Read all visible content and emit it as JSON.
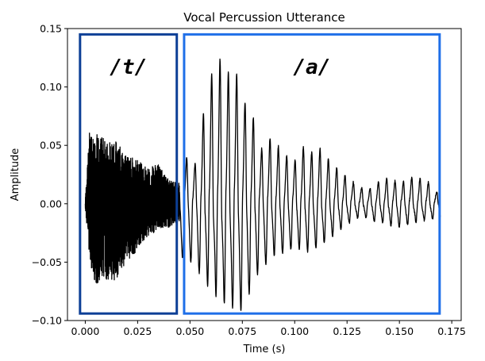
{
  "chart_data": {
    "type": "line",
    "title": "Vocal Percussion Utterance",
    "xlabel": "Time (s)",
    "ylabel": "Amplitude",
    "xlim": [
      -0.0085,
      0.1795
    ],
    "ylim": [
      -0.1,
      0.15
    ],
    "x_ticks": [
      0.0,
      0.025,
      0.05,
      0.075,
      0.1,
      0.125,
      0.15,
      0.175
    ],
    "x_tick_labels": [
      "0.000",
      "0.025",
      "0.050",
      "0.075",
      "0.100",
      "0.125",
      "0.150",
      "0.175"
    ],
    "y_ticks": [
      -0.1,
      -0.05,
      0.0,
      0.05,
      0.1,
      0.15
    ],
    "y_tick_labels": [
      "−0.10",
      "−0.05",
      "0.00",
      "0.05",
      "0.10",
      "0.15"
    ],
    "grid": false,
    "series": [
      {
        "color": "#000000",
        "x_start": 0.0,
        "x_end": 0.1695,
        "envelope": [
          {
            "x": 0.0,
            "low": -0.003,
            "high": 0.004
          },
          {
            "x": 0.002,
            "low": -0.048,
            "high": 0.062
          },
          {
            "x": 0.005,
            "low": -0.07,
            "high": 0.06
          },
          {
            "x": 0.01,
            "low": -0.066,
            "high": 0.055
          },
          {
            "x": 0.015,
            "low": -0.065,
            "high": 0.053
          },
          {
            "x": 0.02,
            "low": -0.05,
            "high": 0.042
          },
          {
            "x": 0.025,
            "low": -0.04,
            "high": 0.038
          },
          {
            "x": 0.03,
            "low": -0.028,
            "high": 0.03
          },
          {
            "x": 0.035,
            "low": -0.022,
            "high": 0.035
          },
          {
            "x": 0.04,
            "low": -0.02,
            "high": 0.02
          },
          {
            "x": 0.045,
            "low": -0.015,
            "high": 0.018
          }
        ],
        "peaks": [
          {
            "x": 0.0483,
            "low": -0.045,
            "high": 0.038
          },
          {
            "x": 0.0523,
            "low": -0.052,
            "high": 0.032
          },
          {
            "x": 0.0562,
            "low": -0.062,
            "high": 0.073
          },
          {
            "x": 0.0601,
            "low": -0.068,
            "high": 0.106
          },
          {
            "x": 0.0641,
            "low": -0.076,
            "high": 0.12
          },
          {
            "x": 0.0681,
            "low": -0.082,
            "high": 0.109
          },
          {
            "x": 0.0721,
            "low": -0.085,
            "high": 0.108
          },
          {
            "x": 0.076,
            "low": -0.09,
            "high": 0.085
          },
          {
            "x": 0.08,
            "low": -0.062,
            "high": 0.073
          },
          {
            "x": 0.084,
            "low": -0.055,
            "high": 0.045
          },
          {
            "x": 0.0879,
            "low": -0.045,
            "high": 0.055
          },
          {
            "x": 0.0919,
            "low": -0.04,
            "high": 0.048
          },
          {
            "x": 0.0959,
            "low": -0.042,
            "high": 0.04
          },
          {
            "x": 0.0999,
            "low": -0.035,
            "high": 0.035
          },
          {
            "x": 0.1039,
            "low": -0.04,
            "high": 0.047
          },
          {
            "x": 0.1078,
            "low": -0.038,
            "high": 0.042
          },
          {
            "x": 0.1118,
            "low": -0.035,
            "high": 0.046
          },
          {
            "x": 0.1158,
            "low": -0.03,
            "high": 0.038
          },
          {
            "x": 0.1198,
            "low": -0.024,
            "high": 0.03
          },
          {
            "x": 0.1238,
            "low": -0.018,
            "high": 0.024
          },
          {
            "x": 0.1278,
            "low": -0.014,
            "high": 0.018
          },
          {
            "x": 0.1317,
            "low": -0.01,
            "high": 0.013
          },
          {
            "x": 0.1357,
            "low": -0.013,
            "high": 0.012
          },
          {
            "x": 0.1397,
            "low": -0.015,
            "high": 0.018
          },
          {
            "x": 0.1437,
            "low": -0.016,
            "high": 0.021
          },
          {
            "x": 0.1477,
            "low": -0.019,
            "high": 0.019
          },
          {
            "x": 0.1517,
            "low": -0.02,
            "high": 0.018
          },
          {
            "x": 0.1557,
            "low": -0.015,
            "high": 0.022
          },
          {
            "x": 0.1597,
            "low": -0.014,
            "high": 0.021
          },
          {
            "x": 0.1637,
            "low": -0.013,
            "high": 0.018
          },
          {
            "x": 0.1677,
            "low": -0.012,
            "high": 0.01
          }
        ]
      }
    ],
    "regions": [
      {
        "label": "/t/",
        "x0": -0.0025,
        "x1": 0.0437,
        "y0": -0.094,
        "y1": 0.145,
        "color": "#0d3f96"
      },
      {
        "label": "/a/",
        "x0": 0.0472,
        "x1": 0.1692,
        "y0": -0.094,
        "y1": 0.145,
        "color": "#1f6fe8"
      }
    ]
  }
}
